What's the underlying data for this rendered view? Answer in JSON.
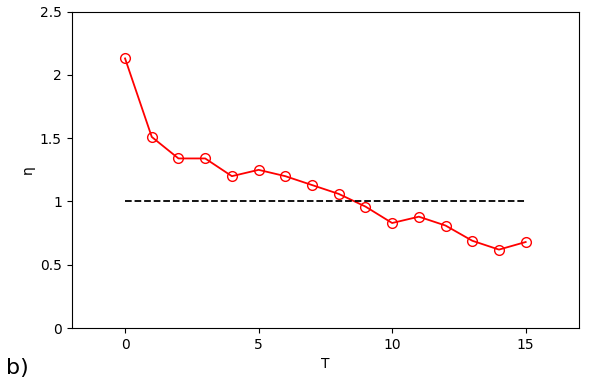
{
  "chart_data": {
    "type": "line",
    "x_label": "T",
    "y_label": "η",
    "panel_label": "b)",
    "series": [
      {
        "type": "line",
        "color": "#ff0000",
        "marker": "circle",
        "line_style": "solid",
        "x": [
          0,
          1,
          2,
          3,
          4,
          5,
          6,
          7,
          8,
          9,
          10,
          11,
          12,
          13,
          14,
          15
        ],
        "values": [
          2.13,
          1.51,
          1.34,
          1.34,
          1.2,
          1.25,
          1.2,
          1.13,
          1.06,
          0.96,
          0.83,
          0.88,
          0.81,
          0.69,
          0.62,
          0.68
        ]
      },
      {
        "type": "line",
        "color": "#000000",
        "marker": "none",
        "line_style": "dashed",
        "x": [
          0,
          15
        ],
        "values": [
          1,
          1
        ]
      }
    ],
    "xlim": [
      -2,
      17
    ],
    "xticks": [
      0,
      5,
      10,
      15
    ],
    "ylim": [
      0,
      2.5
    ],
    "yticks": [
      0,
      0.5,
      1,
      1.5,
      2,
      2.5
    ],
    "grid": false
  }
}
